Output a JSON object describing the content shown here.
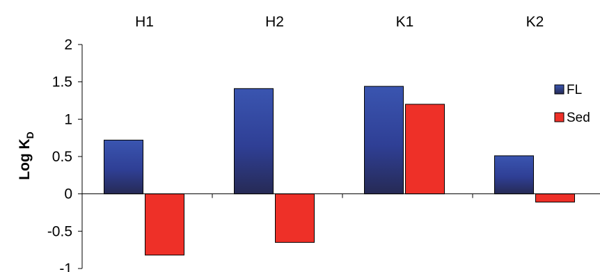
{
  "chart_data": {
    "type": "bar",
    "categories": [
      "H1",
      "H2",
      "K1",
      "K2"
    ],
    "series": [
      {
        "name": "FL",
        "values": [
          0.72,
          1.41,
          1.44,
          0.51
        ],
        "color": "#2e3f8f"
      },
      {
        "name": "Sed",
        "values": [
          -0.82,
          -0.65,
          1.2,
          -0.11
        ],
        "color": "#ee3028"
      }
    ],
    "ylabel_main": "Log K",
    "ylabel_sub": "D",
    "ylim": [
      -1,
      2
    ],
    "yticks": [
      "2",
      "1.5",
      "1",
      "0.5",
      "0",
      "-0.5",
      "-1"
    ],
    "ytick_values": [
      2,
      1.5,
      1,
      0.5,
      0,
      -0.5,
      -1
    ],
    "legend_position": "right",
    "category_labels_position": "top",
    "grid": false
  }
}
